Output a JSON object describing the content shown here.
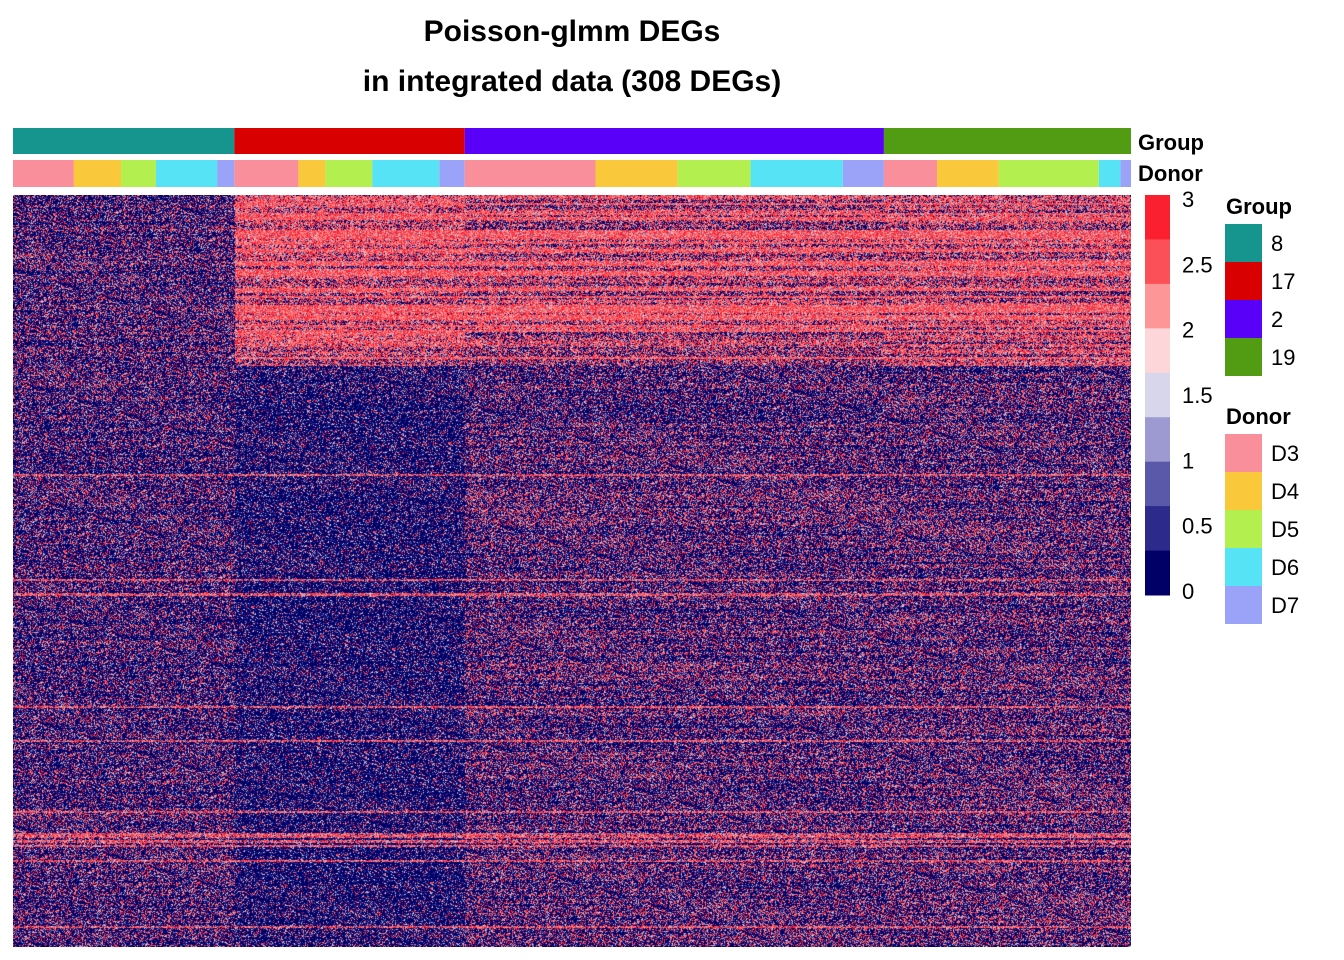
{
  "title": {
    "line1": "Poisson-glmm DEGs",
    "line2": "in integrated data (308 DEGs)"
  },
  "annotations": {
    "group_row_label": "Group",
    "donor_row_label": "Donor"
  },
  "legend": {
    "colorbar": {
      "ticks": [
        "3",
        "2.5",
        "2",
        "1.5",
        "1",
        "0.5",
        "0"
      ],
      "tick_values": [
        3,
        2.5,
        2,
        1.5,
        1,
        0.5,
        0
      ],
      "colors_top_to_bottom": [
        "#fb2030",
        "#fc5058",
        "#fd9696",
        "#fcd6d8",
        "#d8d6ea",
        "#9c9ad0",
        "#5a58a8",
        "#2c2a8a",
        "#000066"
      ]
    },
    "group": {
      "title": "Group",
      "items": [
        {
          "label": "8",
          "color": "#16958e"
        },
        {
          "label": "17",
          "color": "#d80000"
        },
        {
          "label": "2",
          "color": "#5800f8"
        },
        {
          "label": "19",
          "color": "#529c14"
        }
      ]
    },
    "donor": {
      "title": "Donor",
      "items": [
        {
          "label": "D3",
          "color": "#f88f9a"
        },
        {
          "label": "D4",
          "color": "#f9c83b"
        },
        {
          "label": "D5",
          "color": "#b3ef4f"
        },
        {
          "label": "D6",
          "color": "#56e3f5"
        },
        {
          "label": "D7",
          "color": "#9ba3f8"
        }
      ]
    }
  },
  "chart_data": {
    "type": "heatmap",
    "title": "Poisson-glmm DEGs in integrated data (308 DEGs)",
    "n_genes": 308,
    "value_range": [
      0,
      3
    ],
    "column_groups": [
      {
        "group": "8",
        "fraction": 0.198,
        "donors": [
          {
            "donor": "D3",
            "fraction": 0.275
          },
          {
            "donor": "D4",
            "fraction": 0.213
          },
          {
            "donor": "D5",
            "fraction": 0.158
          },
          {
            "donor": "D6",
            "fraction": 0.276
          },
          {
            "donor": "D7",
            "fraction": 0.078
          }
        ]
      },
      {
        "group": "17",
        "fraction": 0.206,
        "donors": [
          {
            "donor": "D3",
            "fraction": 0.278
          },
          {
            "donor": "D4",
            "fraction": 0.117
          },
          {
            "donor": "D5",
            "fraction": 0.204
          },
          {
            "donor": "D6",
            "fraction": 0.291
          },
          {
            "donor": "D7",
            "fraction": 0.11
          }
        ]
      },
      {
        "group": "2",
        "fraction": 0.375,
        "donors": [
          {
            "donor": "D3",
            "fraction": 0.312
          },
          {
            "donor": "D4",
            "fraction": 0.196
          },
          {
            "donor": "D5",
            "fraction": 0.174
          },
          {
            "donor": "D6",
            "fraction": 0.22
          },
          {
            "donor": "D7",
            "fraction": 0.098
          }
        ]
      },
      {
        "group": "19",
        "fraction": 0.221,
        "donors": [
          {
            "donor": "D3",
            "fraction": 0.215
          },
          {
            "donor": "D4",
            "fraction": 0.25
          },
          {
            "donor": "D5",
            "fraction": 0.405
          },
          {
            "donor": "D6",
            "fraction": 0.087
          },
          {
            "donor": "D7",
            "fraction": 0.043
          }
        ]
      }
    ],
    "pattern_summary": [
      {
        "gene_block": "upper (approx. rows 1-70)",
        "group_8": "low-moderate",
        "group_17": "high",
        "group_2": "high",
        "group_19": "high"
      },
      {
        "gene_block": "middle/lower (approx. rows 71-308)",
        "group_8": "moderate",
        "group_17": "low",
        "group_2": "moderate",
        "group_19": "moderate"
      }
    ]
  }
}
